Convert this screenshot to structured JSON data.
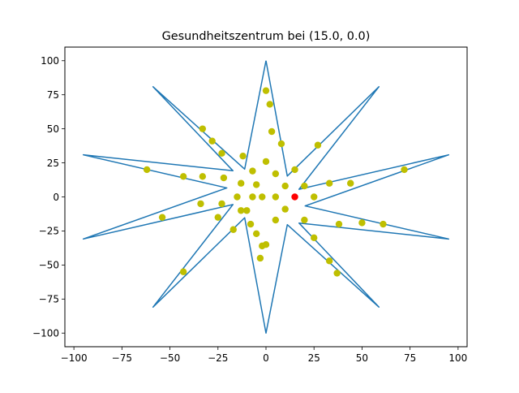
{
  "chart_data": {
    "type": "scatter",
    "title": "Gesundheitszentrum bei (15.0, 0.0)",
    "xlabel": "",
    "ylabel": "",
    "xlim": [
      -104.7,
      104.7
    ],
    "ylim": [
      -110,
      110
    ],
    "x_ticks": [
      -100,
      -75,
      -50,
      -25,
      0,
      25,
      50,
      75,
      100
    ],
    "y_ticks": [
      -100,
      -75,
      -50,
      -25,
      0,
      25,
      50,
      75,
      100
    ],
    "x_tick_labels": [
      "−100",
      "−75",
      "−50",
      "−25",
      "0",
      "25",
      "50",
      "75",
      "100"
    ],
    "y_tick_labels": [
      "−100",
      "−75",
      "−50",
      "−25",
      "0",
      "25",
      "50",
      "75",
      "100"
    ],
    "grid": false,
    "series": [
      {
        "kind": "line",
        "color": "#1f77b4",
        "x": [
          0,
          11.1,
          58.8,
          17.2,
          95.1,
          20.4,
          95.1,
          17.2,
          58.8,
          11.1,
          0,
          -11.1,
          -58.8,
          -17.2,
          -95.1,
          -20.4,
          -95.1,
          -17.2,
          -58.8,
          -11.1,
          0
        ],
        "y": [
          100,
          15.3,
          80.9,
          5.6,
          30.9,
          -6.6,
          -30.9,
          -19.2,
          -80.9,
          -20.4,
          -100,
          -15.3,
          -80.9,
          -5.6,
          -30.9,
          6.6,
          30.9,
          19.2,
          80.9,
          20.4,
          100
        ]
      },
      {
        "kind": "points",
        "color": "#bfbf00",
        "x": [
          0,
          2,
          3,
          8,
          27,
          -33,
          -28,
          -23,
          -12,
          0,
          5,
          15,
          20,
          33,
          44,
          72,
          -62,
          -43,
          -33,
          -22,
          -7,
          -13,
          -15,
          -5,
          10,
          25,
          38,
          50,
          61,
          5,
          -2,
          -10,
          -23,
          -25,
          -34,
          -54,
          -8,
          -17,
          -13,
          -5,
          0,
          5,
          10,
          20,
          25,
          33,
          37,
          -2,
          -3,
          -43,
          -7
        ],
        "y": [
          78,
          68,
          48,
          39,
          38,
          50,
          41,
          32,
          30,
          26,
          17,
          20,
          8,
          10,
          10,
          20,
          20,
          15,
          15,
          14,
          19,
          10,
          0,
          9,
          8,
          0,
          -20,
          -19,
          -20,
          0,
          0,
          -10,
          -5,
          -15,
          -5,
          -15,
          -20,
          -24,
          -10,
          -27,
          -35,
          -17,
          -9,
          -17,
          -30,
          -47,
          -56,
          -36,
          -45,
          -55,
          0
        ]
      },
      {
        "kind": "points",
        "color": "#ff0000",
        "x": [
          15
        ],
        "y": [
          0
        ]
      }
    ]
  }
}
